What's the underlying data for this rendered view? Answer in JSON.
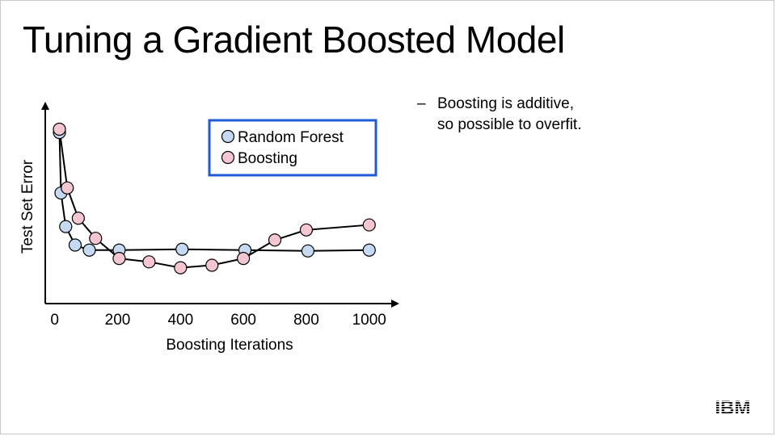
{
  "slide": {
    "title": "Tuning a Gradient Boosted Model",
    "bullets": [
      {
        "dash": "–",
        "lines": [
          "Boosting is additive,",
          "so possible to overfit."
        ]
      }
    ],
    "logo_text": "IBM"
  },
  "chart_data": {
    "type": "scatter",
    "xlabel": "Boosting Iterations",
    "ylabel": "Test Set Error",
    "xlim": [
      -30,
      1070
    ],
    "ylim": [
      0,
      10
    ],
    "x_ticks": [
      0,
      200,
      400,
      600,
      800,
      1000
    ],
    "y_ticks": [],
    "grid": false,
    "legend_position": "top-right",
    "legend_border_color": "#1f5bd6",
    "series": [
      {
        "name": "Random Forest",
        "color": "#c5daf2",
        "points": [
          {
            "x": 15,
            "y": 9.8
          },
          {
            "x": 20,
            "y": 6.2
          },
          {
            "x": 35,
            "y": 4.2
          },
          {
            "x": 65,
            "y": 3.1
          },
          {
            "x": 110,
            "y": 2.8
          },
          {
            "x": 205,
            "y": 2.8
          },
          {
            "x": 405,
            "y": 2.85
          },
          {
            "x": 605,
            "y": 2.8
          },
          {
            "x": 805,
            "y": 2.75
          },
          {
            "x": 1000,
            "y": 2.8
          }
        ]
      },
      {
        "name": "Boosting",
        "color": "#f4c6d1",
        "points": [
          {
            "x": 15,
            "y": 10.0
          },
          {
            "x": 40,
            "y": 6.5
          },
          {
            "x": 75,
            "y": 4.7
          },
          {
            "x": 130,
            "y": 3.5
          },
          {
            "x": 205,
            "y": 2.3
          },
          {
            "x": 300,
            "y": 2.1
          },
          {
            "x": 400,
            "y": 1.75
          },
          {
            "x": 500,
            "y": 1.9
          },
          {
            "x": 600,
            "y": 2.3
          },
          {
            "x": 700,
            "y": 3.4
          },
          {
            "x": 800,
            "y": 4.0
          },
          {
            "x": 1000,
            "y": 4.3
          }
        ]
      }
    ]
  }
}
